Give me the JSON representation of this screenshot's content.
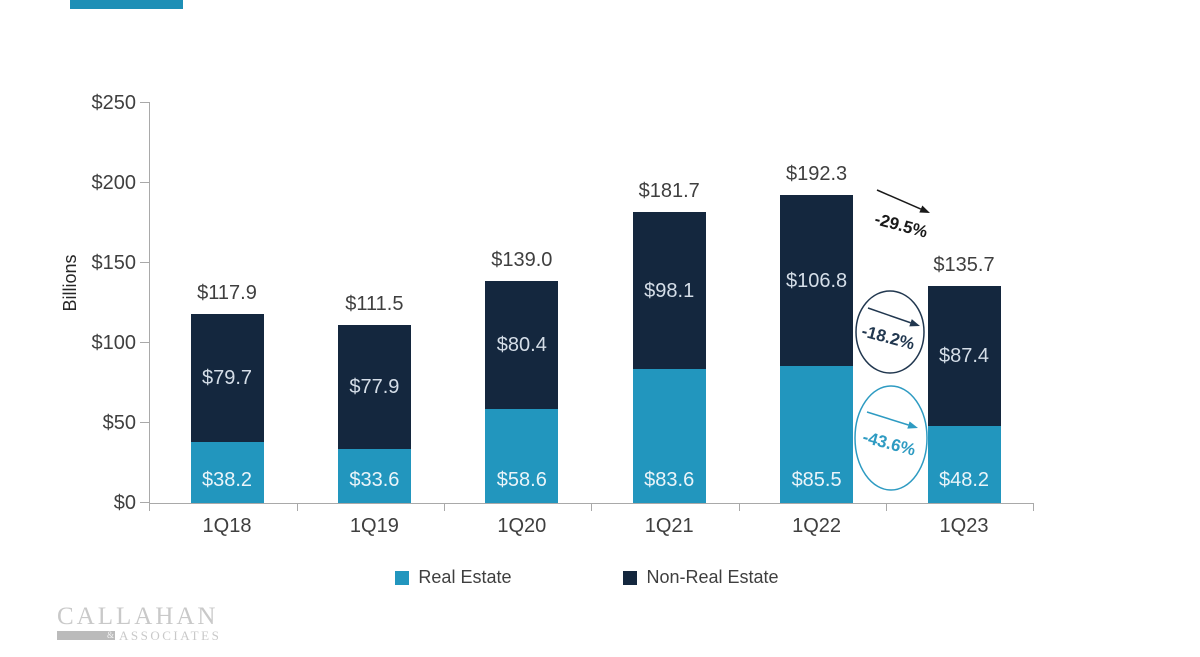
{
  "chart_data": {
    "type": "bar",
    "stacked": true,
    "title": "",
    "xlabel": "",
    "ylabel": "Billions",
    "ylim": [
      0,
      250
    ],
    "ytick_step": 50,
    "ytick_labels": [
      "$0",
      "$50",
      "$100",
      "$150",
      "$200",
      "$250"
    ],
    "grid": false,
    "categories": [
      "1Q18",
      "1Q19",
      "1Q20",
      "1Q21",
      "1Q22",
      "1Q23"
    ],
    "series": [
      {
        "name": "Real Estate",
        "color": "#2296BE",
        "label_color": "#eaf4f9",
        "values": [
          38.2,
          33.6,
          58.6,
          83.6,
          85.5,
          48.2
        ],
        "labels": [
          "$38.2",
          "$33.6",
          "$58.6",
          "$83.6",
          "$85.5",
          "$48.2"
        ]
      },
      {
        "name": "Non-Real Estate",
        "color": "#14273E",
        "label_color": "#d5dee8",
        "values": [
          79.7,
          77.9,
          80.4,
          98.1,
          106.8,
          87.4
        ],
        "labels": [
          "$79.7",
          "$77.9",
          "$80.4",
          "$98.1",
          "$106.8",
          "$87.4"
        ]
      }
    ],
    "totals": {
      "values": [
        117.9,
        111.5,
        139.0,
        181.7,
        192.3,
        135.7
      ],
      "labels": [
        "$117.9",
        "$111.5",
        "$139.0",
        "$181.7",
        "$192.3",
        "$135.7"
      ]
    },
    "legend": {
      "position": "bottom",
      "entries": [
        {
          "label": "Real Estate",
          "color": "#2296BE"
        },
        {
          "label": "Non-Real Estate",
          "color": "#14273E"
        }
      ]
    },
    "annotations": [
      {
        "text": "-29.5%",
        "shape": "arrow",
        "color": "#1a1a1a"
      },
      {
        "text": "-18.2%",
        "shape": "ellipse-arrow",
        "color": "#21374F"
      },
      {
        "text": "-43.6%",
        "shape": "ellipse-arrow",
        "color": "#2E9BC2"
      }
    ]
  },
  "colors": {
    "accent_bar": "#1E8FB6",
    "axis": "#a9a9a9",
    "text": "#3f3f3f"
  },
  "logo": {
    "name": "CALLAHAN",
    "ampersand": "&",
    "suffix": "ASSOCIATES"
  }
}
